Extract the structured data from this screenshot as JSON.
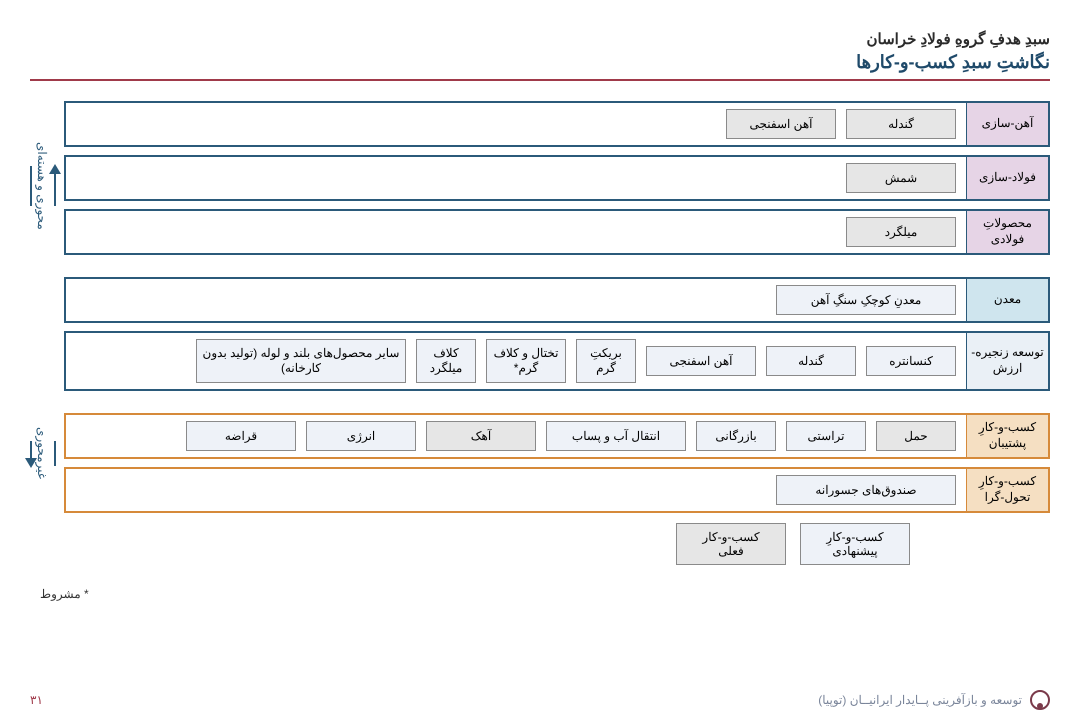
{
  "header": {
    "line1": "سبدِ هدفِ گروهِ فولادِ خراسان",
    "line2": "نگاشتِ سبدِ کسب-و-کارها"
  },
  "axis": {
    "top_label": "محوری و هسته‌ای",
    "bottom_label": "غیرمحوری"
  },
  "colors": {
    "teal_border": "#2b5a7a",
    "orange_border": "#d68a3a",
    "cat_purple": "#e6d4e6",
    "cat_blue": "#cfe5ee",
    "cat_lightblue": "#eaf0f6",
    "cat_orange": "#f5dfc2",
    "item_current": "#e6e6e6",
    "item_proposed": "#eef2f8"
  },
  "rows": [
    {
      "id": "iron",
      "border": "#2b5a7a",
      "cat_bg": "#e6d4e6",
      "category": "آهن-سازی",
      "items": [
        {
          "label": "گندله",
          "bg": "#e6e6e6",
          "w": "w-110"
        },
        {
          "label": "آهن اسفنجی",
          "bg": "#e6e6e6",
          "w": "w-110"
        }
      ]
    },
    {
      "id": "steel",
      "border": "#2b5a7a",
      "cat_bg": "#e6d4e6",
      "category": "فولاد-سازی",
      "items": [
        {
          "label": "شمش",
          "bg": "#e6e6e6",
          "w": "w-110"
        }
      ]
    },
    {
      "id": "products",
      "border": "#2b5a7a",
      "cat_bg": "#e6d4e6",
      "category": "محصولاتِ فولادی",
      "items": [
        {
          "label": "میلگرد",
          "bg": "#e6e6e6",
          "w": "w-110"
        }
      ]
    },
    {
      "id": "mine",
      "border": "#2b5a7a",
      "cat_bg": "#cfe5ee",
      "category": "معدن",
      "items": [
        {
          "label": "معدنِ کوچکِ سنگِ آهن",
          "bg": "#eef2f8",
          "w": "w-180"
        }
      ]
    },
    {
      "id": "chain",
      "border": "#2b5a7a",
      "cat_bg": "#eaf0f6",
      "category": "توسعه زنجیره-ارزش",
      "items": [
        {
          "label": "کنسانتره",
          "bg": "#eef2f8",
          "w": "w-90"
        },
        {
          "label": "گندله",
          "bg": "#eef2f8",
          "w": "w-90"
        },
        {
          "label": "آهن اسفنجی",
          "bg": "#eef2f8",
          "w": "w-110"
        },
        {
          "label": "بریکتِ گرم",
          "bg": "#eef2f8",
          "w": "w-60"
        },
        {
          "label": "تختال و کلاف گرم*",
          "bg": "#eef2f8",
          "w": "w-80"
        },
        {
          "label": "کلاف میلگرد",
          "bg": "#eef2f8",
          "w": "w-60"
        },
        {
          "label": "سایر محصول‌های بلند و لوله (تولید بدون کارخانه)",
          "bg": "#eef2f8",
          "w": "w-210"
        }
      ]
    },
    {
      "id": "support",
      "border": "#d68a3a",
      "cat_bg": "#f5dfc2",
      "category": "کسب-و-کارِ پشتیبان",
      "items": [
        {
          "label": "حمل",
          "bg": "#e6e6e6",
          "w": "w-80"
        },
        {
          "label": "تراستی",
          "bg": "#eef2f8",
          "w": "w-80"
        },
        {
          "label": "بازرگانی",
          "bg": "#eef2f8",
          "w": "w-80"
        },
        {
          "label": "انتقال آب و پساب",
          "bg": "#eef2f8",
          "w": "w-140"
        },
        {
          "label": "آهک",
          "bg": "#e6e6e6",
          "w": "w-110"
        },
        {
          "label": "انرژی",
          "bg": "#eef2f8",
          "w": "w-110"
        },
        {
          "label": "قراضه",
          "bg": "#eef2f8",
          "w": "w-110"
        }
      ]
    },
    {
      "id": "transform",
      "border": "#d68a3a",
      "cat_bg": "#f5dfc2",
      "category": "کسب-و-کارِ تحول-گرا",
      "items": [
        {
          "label": "صندوق‌های جسورانه",
          "bg": "#eef2f8",
          "w": "w-180"
        }
      ]
    }
  ],
  "legend": {
    "proposed": "کسب-و-کارِ پیشنهادی",
    "current": "کسب-و-کار فعلی"
  },
  "footnote": "* مشروط",
  "footer": {
    "org": "توسعه و بازآفرینی پــایدار ایرانیــان (توپیا)",
    "page": "۳۱"
  }
}
